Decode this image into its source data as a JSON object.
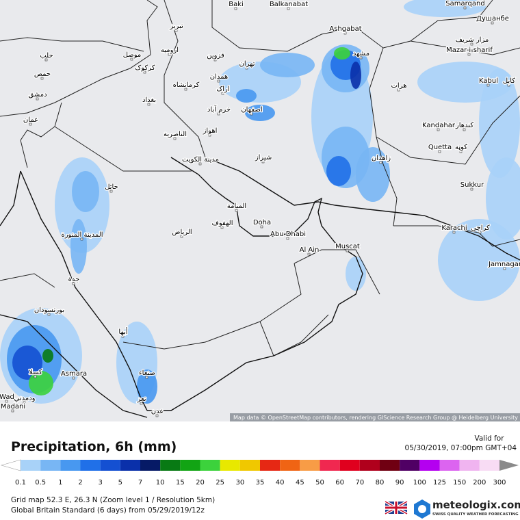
{
  "map": {
    "attribution": "Map data © OpenStreetMap contributors, rendering GIScience Research Group @ Heidelberg University",
    "cities": [
      {
        "label": "Baki"
      },
      {
        "label": "Balkanabat"
      },
      {
        "label": "Samarqand"
      },
      {
        "label": "Ashgabat"
      },
      {
        "label": "Душанбе"
      },
      {
        "label": "مزار شریف"
      },
      {
        "label": "Mazar-i-sharif"
      },
      {
        "label": "مشهد"
      },
      {
        "label": "تبریز"
      },
      {
        "label": "ارومیه"
      },
      {
        "label": "موصل"
      },
      {
        "label": "کرکوک"
      },
      {
        "label": "حلب"
      },
      {
        "label": "حمص"
      },
      {
        "label": "دمشق"
      },
      {
        "label": "عمان"
      },
      {
        "label": "قزوين"
      },
      {
        "label": "تهران"
      },
      {
        "label": "همدان"
      },
      {
        "label": "کرمانشاه"
      },
      {
        "label": "اراک"
      },
      {
        "label": "بغداد"
      },
      {
        "label": "خرم آباد"
      },
      {
        "label": "اصفهان"
      },
      {
        "label": "هرات"
      },
      {
        "label": "Kabul"
      },
      {
        "label": "کابل"
      },
      {
        "label": "Kandahar"
      },
      {
        "label": "کندهار"
      },
      {
        "label": "اهواز"
      },
      {
        "label": "الناصرية"
      },
      {
        "label": "Quetta"
      },
      {
        "label": "کوټه"
      },
      {
        "label": "شیراز"
      },
      {
        "label": "زاهدان"
      },
      {
        "label": "مدينة الكويت"
      },
      {
        "label": "حائل"
      },
      {
        "label": "Sukkur"
      },
      {
        "label": "المنامة"
      },
      {
        "label": "الهفوف"
      },
      {
        "label": "Doha"
      },
      {
        "label": "الرياض"
      },
      {
        "label": "Abu Dhabi"
      },
      {
        "label": "المدينة المنورة"
      },
      {
        "label": "Al Ain"
      },
      {
        "label": "Muscat"
      },
      {
        "label": "Karachi"
      },
      {
        "label": "کراچی"
      },
      {
        "label": "Jamnagar"
      },
      {
        "label": "جدة"
      },
      {
        "label": "بورتسودان"
      },
      {
        "label": "أبها"
      },
      {
        "label": "Asmara"
      },
      {
        "label": "صنعاء"
      },
      {
        "label": "كسلا"
      },
      {
        "label": "Wad"
      },
      {
        "label": "ودمدني"
      },
      {
        "label": "Madani"
      },
      {
        "label": "تعز"
      },
      {
        "label": "عدن"
      }
    ]
  },
  "legend": {
    "title": "Precipitation, 6h (mm)",
    "valid_label": "Valid for",
    "valid_time": "05/30/2019, 07:00pm GMT+04",
    "items": [
      {
        "value": 0.1,
        "color": "#a8d2f8"
      },
      {
        "value": 0.5,
        "color": "#78b6f4"
      },
      {
        "value": 1,
        "color": "#4898f0"
      },
      {
        "value": 2,
        "color": "#2070e8"
      },
      {
        "value": 3,
        "color": "#1450d2"
      },
      {
        "value": 5,
        "color": "#0a30aa"
      },
      {
        "value": 7,
        "color": "#061a66"
      },
      {
        "value": 10,
        "color": "#087a14"
      },
      {
        "value": 15,
        "color": "#12a414"
      },
      {
        "value": 20,
        "color": "#3cd23c"
      },
      {
        "value": 25,
        "color": "#e8e800"
      },
      {
        "value": 30,
        "color": "#f0c800"
      },
      {
        "value": 35,
        "color": "#e62814"
      },
      {
        "value": 40,
        "color": "#f06414"
      },
      {
        "value": 45,
        "color": "#f89c46"
      },
      {
        "value": 50,
        "color": "#f02850"
      },
      {
        "value": 60,
        "color": "#e0001e"
      },
      {
        "value": 70,
        "color": "#b0001c"
      },
      {
        "value": 80,
        "color": "#700012"
      },
      {
        "value": 90,
        "color": "#500064"
      },
      {
        "value": 100,
        "color": "#b400f0"
      },
      {
        "value": 125,
        "color": "#dc64f0"
      },
      {
        "value": 150,
        "color": "#f0b4f0"
      },
      {
        "value": 200,
        "color": "#f8dcf4"
      },
      {
        "value": 300,
        "color": "#8a8a8a"
      }
    ]
  },
  "footer": {
    "line1": "Grid map 52.3 E, 26.3 N (Zoom level 1 / Resolution 5km)",
    "line2": "Global Britain Standard (6 days) from 05/29/2019/12z"
  },
  "brand": {
    "name": "meteologix.com",
    "tagline": "SWISS QUALITY WEATHER FORECASTING"
  }
}
